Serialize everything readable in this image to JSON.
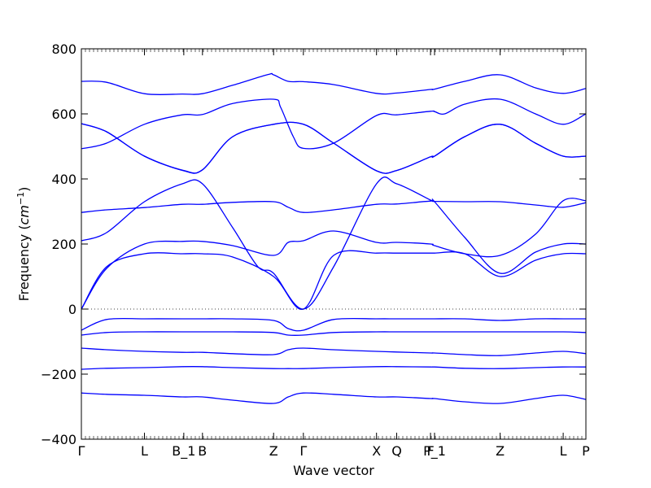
{
  "chart_data": {
    "type": "line",
    "title": "",
    "xlabel": "Wave vector",
    "ylabel_prefix": "Frequency (",
    "ylabel_unit": "cm",
    "ylabel_exp": "−1",
    "ylabel_suffix": ")",
    "ylim": [
      -400,
      800
    ],
    "yticks": [
      -400,
      -200,
      0,
      200,
      400,
      600,
      800
    ],
    "ytick_labels": [
      "−400",
      "−200",
      "0",
      "200",
      "400",
      "600",
      "800"
    ],
    "xlim": [
      0,
      1
    ],
    "xticks": [
      {
        "label": "Γ",
        "x": 0.0
      },
      {
        "label": "L",
        "x": 0.125
      },
      {
        "label": "B_1",
        "x": 0.203
      },
      {
        "label": "B",
        "x": 0.24
      },
      {
        "label": "Z",
        "x": 0.381
      },
      {
        "label": "Γ",
        "x": 0.44
      },
      {
        "label": "X",
        "x": 0.585
      },
      {
        "label": "Q",
        "x": 0.625
      },
      {
        "label": "F",
        "x": 0.692
      },
      {
        "label": "P_1",
        "x": 0.7
      },
      {
        "label": "Z",
        "x": 0.83
      },
      {
        "label": "L",
        "x": 0.955
      },
      {
        "label": "P",
        "x": 1.0
      }
    ],
    "zero_line": true,
    "grid": false,
    "line_color": "#0000ff",
    "series": [
      {
        "values": [
          [
            0,
            700
          ],
          [
            0.05,
            697
          ],
          [
            0.125,
            662
          ],
          [
            0.2,
            661
          ],
          [
            0.24,
            662
          ],
          [
            0.3,
            688
          ],
          [
            0.37,
            721
          ],
          [
            0.381,
            720
          ],
          [
            0.41,
            700
          ],
          [
            0.44,
            699
          ],
          [
            0.5,
            690
          ],
          [
            0.585,
            663
          ],
          [
            0.625,
            664
          ],
          [
            0.692,
            675
          ],
          [
            0.7,
            676
          ],
          [
            0.76,
            700
          ],
          [
            0.83,
            720
          ],
          [
            0.9,
            680
          ],
          [
            0.955,
            663
          ],
          [
            1,
            678
          ]
        ]
      },
      {
        "values": [
          [
            0,
            493
          ],
          [
            0.05,
            510
          ],
          [
            0.125,
            568
          ],
          [
            0.2,
            597
          ],
          [
            0.24,
            598
          ],
          [
            0.3,
            632
          ],
          [
            0.381,
            645
          ],
          [
            0.395,
            620
          ],
          [
            0.42,
            530
          ],
          [
            0.44,
            494
          ],
          [
            0.5,
            510
          ],
          [
            0.585,
            595
          ],
          [
            0.625,
            597
          ],
          [
            0.692,
            608
          ],
          [
            0.7,
            607
          ],
          [
            0.72,
            600
          ],
          [
            0.76,
            630
          ],
          [
            0.83,
            645
          ],
          [
            0.9,
            600
          ],
          [
            0.955,
            568
          ],
          [
            1,
            600
          ]
        ]
      },
      {
        "values": [
          [
            0,
            570
          ],
          [
            0.05,
            545
          ],
          [
            0.125,
            470
          ],
          [
            0.203,
            425
          ],
          [
            0.24,
            428
          ],
          [
            0.3,
            530
          ],
          [
            0.381,
            568
          ],
          [
            0.44,
            568
          ],
          [
            0.5,
            510
          ],
          [
            0.585,
            425
          ],
          [
            0.625,
            426
          ],
          [
            0.692,
            468
          ],
          [
            0.7,
            470
          ],
          [
            0.76,
            530
          ],
          [
            0.83,
            568
          ],
          [
            0.9,
            510
          ],
          [
            0.955,
            470
          ],
          [
            1,
            470
          ]
        ]
      },
      {
        "values": [
          [
            0,
            570
          ],
          [
            0.05,
            545
          ],
          [
            0.125,
            470
          ],
          [
            0.203,
            426
          ],
          [
            0.24,
            428
          ],
          [
            0.3,
            530
          ],
          [
            0.381,
            568
          ],
          [
            0.44,
            568
          ],
          [
            0.5,
            510
          ],
          [
            0.585,
            425
          ],
          [
            0.625,
            426
          ],
          [
            0.692,
            468
          ],
          [
            0.7,
            470
          ],
          [
            0.76,
            530
          ],
          [
            0.83,
            568
          ],
          [
            0.9,
            510
          ],
          [
            0.955,
            470
          ],
          [
            1,
            470
          ]
        ]
      },
      {
        "values": [
          [
            0,
            210
          ],
          [
            0.05,
            235
          ],
          [
            0.125,
            330
          ],
          [
            0.2,
            385
          ],
          [
            0.24,
            385
          ],
          [
            0.3,
            250
          ],
          [
            0.35,
            130
          ],
          [
            0.381,
            110
          ],
          [
            0.44,
            0
          ],
          [
            0.5,
            130
          ],
          [
            0.585,
            385
          ],
          [
            0.625,
            385
          ],
          [
            0.692,
            335
          ],
          [
            0.7,
            330
          ],
          [
            0.76,
            220
          ],
          [
            0.83,
            110
          ],
          [
            0.9,
            175
          ],
          [
            0.955,
            200
          ],
          [
            1,
            200
          ]
        ]
      },
      {
        "values": [
          [
            0,
            297
          ],
          [
            0.05,
            305
          ],
          [
            0.125,
            312
          ],
          [
            0.2,
            322
          ],
          [
            0.24,
            322
          ],
          [
            0.3,
            328
          ],
          [
            0.381,
            330
          ],
          [
            0.41,
            313
          ],
          [
            0.44,
            297
          ],
          [
            0.5,
            305
          ],
          [
            0.585,
            322
          ],
          [
            0.625,
            323
          ],
          [
            0.692,
            332
          ],
          [
            0.7,
            331
          ],
          [
            0.76,
            330
          ],
          [
            0.83,
            330
          ],
          [
            0.9,
            320
          ],
          [
            0.955,
            313
          ],
          [
            1,
            327
          ]
        ]
      },
      {
        "values": [
          [
            0,
            0
          ],
          [
            0.05,
            125
          ],
          [
            0.125,
            200
          ],
          [
            0.2,
            208
          ],
          [
            0.24,
            208
          ],
          [
            0.3,
            195
          ],
          [
            0.381,
            165
          ],
          [
            0.41,
            205
          ],
          [
            0.44,
            210
          ],
          [
            0.5,
            240
          ],
          [
            0.585,
            205
          ],
          [
            0.625,
            205
          ],
          [
            0.692,
            200
          ],
          [
            0.7,
            195
          ],
          [
            0.76,
            170
          ],
          [
            0.83,
            165
          ],
          [
            0.9,
            230
          ],
          [
            0.955,
            333
          ],
          [
            1,
            333
          ]
        ]
      },
      {
        "values": [
          [
            0,
            0
          ],
          [
            0.05,
            130
          ],
          [
            0.125,
            170
          ],
          [
            0.2,
            170
          ],
          [
            0.24,
            170
          ],
          [
            0.3,
            160
          ],
          [
            0.381,
            100
          ],
          [
            0.44,
            0
          ],
          [
            0.5,
            165
          ],
          [
            0.585,
            172
          ],
          [
            0.625,
            172
          ],
          [
            0.692,
            172
          ],
          [
            0.7,
            172
          ],
          [
            0.76,
            170
          ],
          [
            0.83,
            100
          ],
          [
            0.9,
            150
          ],
          [
            0.955,
            170
          ],
          [
            1,
            170
          ]
        ]
      },
      {
        "values": [
          [
            0,
            -65
          ],
          [
            0.05,
            -32
          ],
          [
            0.125,
            -30
          ],
          [
            0.2,
            -30
          ],
          [
            0.24,
            -30
          ],
          [
            0.3,
            -30
          ],
          [
            0.381,
            -35
          ],
          [
            0.41,
            -60
          ],
          [
            0.44,
            -65
          ],
          [
            0.5,
            -32
          ],
          [
            0.585,
            -30
          ],
          [
            0.625,
            -30
          ],
          [
            0.692,
            -30
          ],
          [
            0.7,
            -30
          ],
          [
            0.76,
            -30
          ],
          [
            0.83,
            -35
          ],
          [
            0.9,
            -30
          ],
          [
            0.955,
            -30
          ],
          [
            1,
            -30
          ]
        ]
      },
      {
        "values": [
          [
            0,
            -80
          ],
          [
            0.05,
            -72
          ],
          [
            0.125,
            -70
          ],
          [
            0.2,
            -70
          ],
          [
            0.24,
            -70
          ],
          [
            0.3,
            -70
          ],
          [
            0.381,
            -72
          ],
          [
            0.41,
            -80
          ],
          [
            0.44,
            -80
          ],
          [
            0.5,
            -72
          ],
          [
            0.585,
            -70
          ],
          [
            0.625,
            -70
          ],
          [
            0.692,
            -70
          ],
          [
            0.7,
            -70
          ],
          [
            0.76,
            -70
          ],
          [
            0.83,
            -70
          ],
          [
            0.9,
            -70
          ],
          [
            0.955,
            -70
          ],
          [
            1,
            -72
          ]
        ]
      },
      {
        "values": [
          [
            0,
            -120
          ],
          [
            0.05,
            -125
          ],
          [
            0.125,
            -130
          ],
          [
            0.2,
            -133
          ],
          [
            0.24,
            -133
          ],
          [
            0.3,
            -137
          ],
          [
            0.381,
            -140
          ],
          [
            0.41,
            -125
          ],
          [
            0.44,
            -120
          ],
          [
            0.5,
            -125
          ],
          [
            0.585,
            -130
          ],
          [
            0.625,
            -132
          ],
          [
            0.692,
            -135
          ],
          [
            0.7,
            -135
          ],
          [
            0.76,
            -140
          ],
          [
            0.83,
            -143
          ],
          [
            0.9,
            -135
          ],
          [
            0.955,
            -130
          ],
          [
            1,
            -137
          ]
        ]
      },
      {
        "values": [
          [
            0,
            -185
          ],
          [
            0.05,
            -182
          ],
          [
            0.125,
            -180
          ],
          [
            0.2,
            -177
          ],
          [
            0.24,
            -177
          ],
          [
            0.3,
            -180
          ],
          [
            0.381,
            -183
          ],
          [
            0.41,
            -183
          ],
          [
            0.44,
            -183
          ],
          [
            0.5,
            -180
          ],
          [
            0.585,
            -177
          ],
          [
            0.625,
            -177
          ],
          [
            0.692,
            -178
          ],
          [
            0.7,
            -178
          ],
          [
            0.76,
            -182
          ],
          [
            0.83,
            -183
          ],
          [
            0.9,
            -180
          ],
          [
            0.955,
            -178
          ],
          [
            1,
            -178
          ]
        ]
      },
      {
        "values": [
          [
            0,
            -258
          ],
          [
            0.05,
            -262
          ],
          [
            0.125,
            -265
          ],
          [
            0.2,
            -270
          ],
          [
            0.24,
            -270
          ],
          [
            0.3,
            -280
          ],
          [
            0.381,
            -290
          ],
          [
            0.41,
            -270
          ],
          [
            0.44,
            -258
          ],
          [
            0.5,
            -262
          ],
          [
            0.585,
            -270
          ],
          [
            0.625,
            -270
          ],
          [
            0.692,
            -275
          ],
          [
            0.7,
            -275
          ],
          [
            0.76,
            -285
          ],
          [
            0.83,
            -290
          ],
          [
            0.9,
            -275
          ],
          [
            0.955,
            -265
          ],
          [
            1,
            -278
          ]
        ]
      }
    ]
  }
}
